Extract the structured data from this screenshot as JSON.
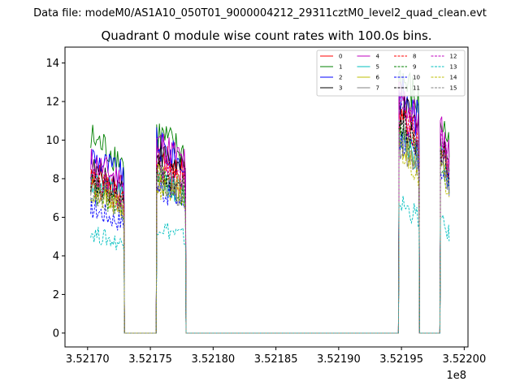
{
  "chart_data": {
    "type": "line",
    "suptitle": "Data file: modeM0/AS1A10_050T01_9000004212_29311cztM0_level2_quad_clean.evt",
    "title": "Quadrant 0 module wise count rates with 100.0s bins.",
    "xlabel": "",
    "ylabel": "",
    "x_offset_label": "1e8",
    "xlim": [
      3.521682,
      3.522003
    ],
    "ylim": [
      -0.72,
      14.82
    ],
    "xticks": [
      3.5217,
      3.52175,
      3.5218,
      3.52185,
      3.5219,
      3.52195,
      3.522
    ],
    "xtick_labels": [
      "3.52170",
      "3.52175",
      "3.52180",
      "3.52185",
      "3.52190",
      "3.52195",
      "3.52200"
    ],
    "yticks": [
      0,
      2,
      4,
      6,
      8,
      10,
      12,
      14
    ],
    "ytick_labels": [
      "0",
      "2",
      "4",
      "6",
      "8",
      "10",
      "12",
      "14"
    ],
    "legend_position": "top-right",
    "segments": [
      {
        "x_start": 3.521703,
        "x_end": 3.521729
      },
      {
        "x_start": 3.521755,
        "x_end": 3.521778
      },
      {
        "x_start": 3.521948,
        "x_end": 3.521964
      },
      {
        "x_start": 3.521981,
        "x_end": 3.521988
      }
    ],
    "gaps_value": 0,
    "series": [
      {
        "name": "0",
        "color": "#ff0000",
        "dash": "solid",
        "levels": [
          8.4,
          9.3,
          11.6,
          9.7
        ]
      },
      {
        "name": "1",
        "color": "#008000",
        "dash": "solid",
        "levels": [
          10.1,
          10.4,
          13.4,
          11.1
        ]
      },
      {
        "name": "2",
        "color": "#0000ff",
        "dash": "solid",
        "levels": [
          9.2,
          9.8,
          12.5,
          9.6
        ]
      },
      {
        "name": "3",
        "color": "#000000",
        "dash": "solid",
        "levels": [
          8.5,
          9.4,
          11.8,
          10.2
        ]
      },
      {
        "name": "4",
        "color": "#bf00bf",
        "dash": "solid",
        "levels": [
          8.9,
          10.0,
          12.4,
          10.6
        ]
      },
      {
        "name": "5",
        "color": "#00bfbf",
        "dash": "solid",
        "levels": [
          7.9,
          8.1,
          10.4,
          9.2
        ]
      },
      {
        "name": "6",
        "color": "#bfbf00",
        "dash": "solid",
        "levels": [
          7.6,
          8.2,
          10.2,
          9.0
        ]
      },
      {
        "name": "7",
        "color": "#808080",
        "dash": "solid",
        "levels": [
          7.5,
          7.9,
          10.0,
          9.3
        ]
      },
      {
        "name": "8",
        "color": "#ff0000",
        "dash": "dashed",
        "levels": [
          7.9,
          8.7,
          11.2,
          9.5
        ]
      },
      {
        "name": "9",
        "color": "#008000",
        "dash": "dashed",
        "levels": [
          7.3,
          8.0,
          10.4,
          8.8
        ]
      },
      {
        "name": "10",
        "color": "#0000ff",
        "dash": "dashed",
        "levels": [
          6.5,
          7.6,
          10.2,
          8.7
        ]
      },
      {
        "name": "11",
        "color": "#000000",
        "dash": "dashed",
        "levels": [
          7.7,
          8.5,
          11.0,
          9.7
        ]
      },
      {
        "name": "12",
        "color": "#bf00bf",
        "dash": "dashed",
        "levels": [
          8.1,
          9.0,
          11.6,
          10.0
        ]
      },
      {
        "name": "13",
        "color": "#00bfbf",
        "dash": "dashed",
        "levels": [
          5.2,
          5.6,
          6.8,
          5.8
        ]
      },
      {
        "name": "14",
        "color": "#bfbf00",
        "dash": "dashed",
        "levels": [
          7.2,
          7.7,
          9.6,
          8.6
        ]
      },
      {
        "name": "15",
        "color": "#808080",
        "dash": "dashed",
        "levels": [
          7.4,
          8.2,
          10.4,
          8.9
        ]
      }
    ]
  }
}
